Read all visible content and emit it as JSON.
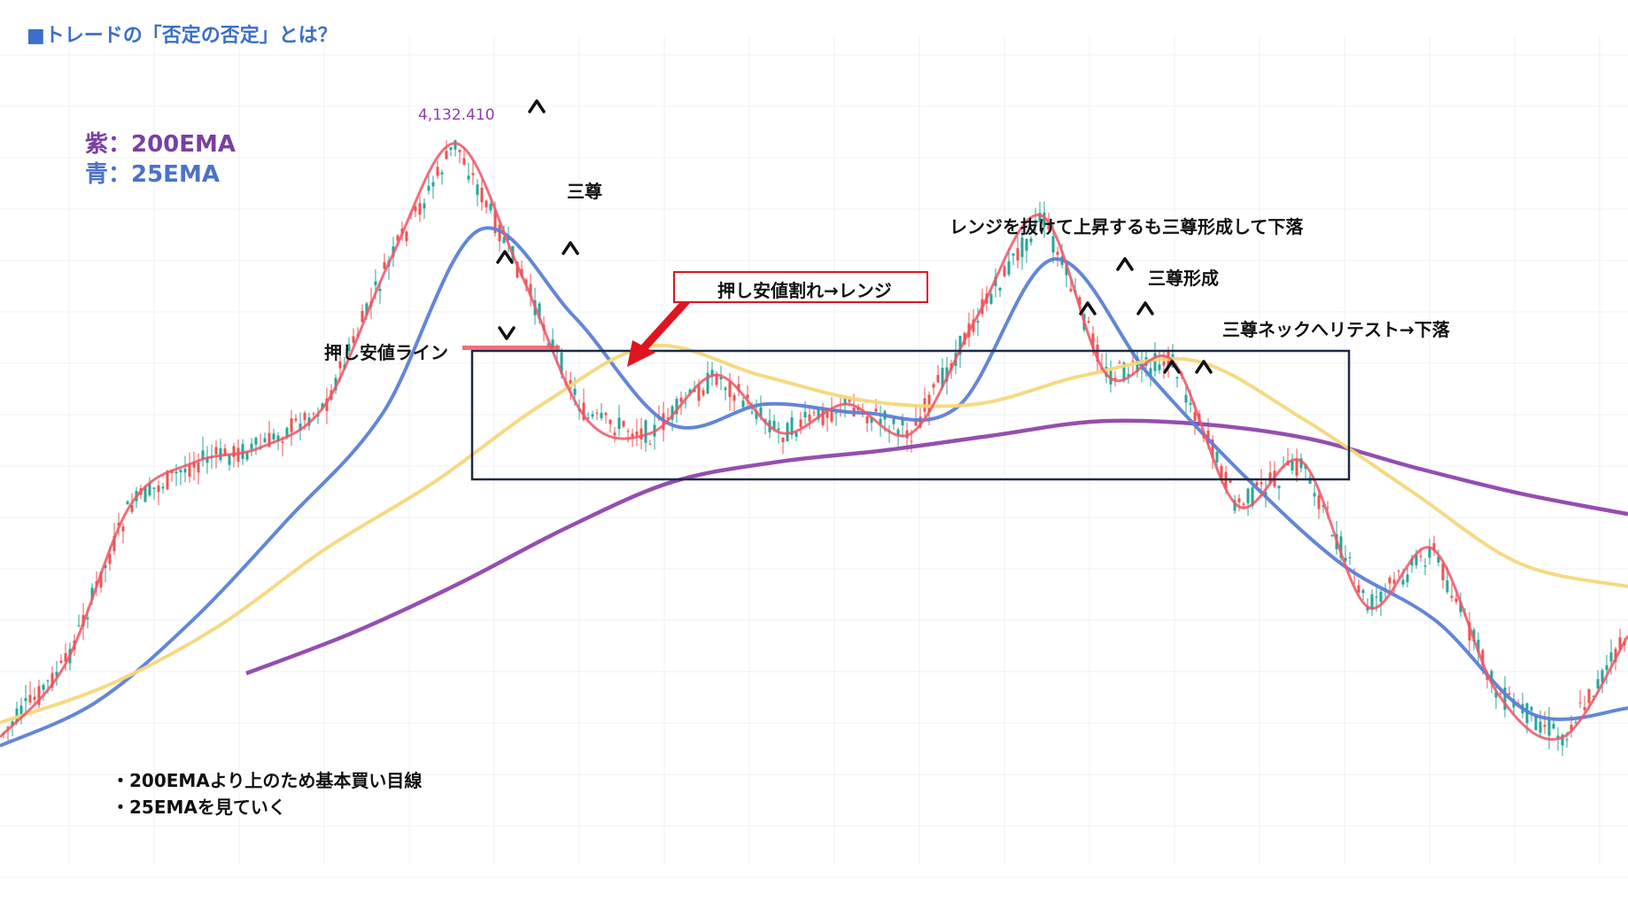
{
  "title": "■トレードの「否定の否定」とは？",
  "price_label": "4,132.410",
  "legend": {
    "ema200": "紫：200EMA",
    "ema25": "青：25EMA"
  },
  "annotations": {
    "sanzon1": "三尊",
    "oshi_line": "押し安値ライン",
    "oshi_break": "押し安値割れ→レンジ",
    "range_break": "レンジを抜けて上昇するも三尊形成して下落",
    "sanzon_keisei": "三尊形成",
    "neck_retest": "三尊ネックへリテスト→下落"
  },
  "notes": [
    "・200EMAより上のため基本買い目線",
    "・25EMAを見ていく"
  ],
  "colors": {
    "title": "#3a6fcc",
    "ema200": "#8e44ad",
    "ema25": "#5b7fd6",
    "ema75": "#f6d77a",
    "price_line": "#ee5566",
    "candle_up": "#26a69a",
    "candle_down": "#ef5350",
    "range_box": "#1c2a44",
    "highlight": "#e0141f"
  },
  "chart_data": {
    "type": "line",
    "title": "",
    "xlabel": "",
    "ylabel": "",
    "y_range_note": "price axis not shown",
    "series": [
      {
        "name": "200EMA",
        "values": [
          5.2,
          6.6,
          8.3,
          10.2,
          11.8,
          12.5,
          12.9,
          13.4,
          13.9,
          13.8,
          13.3,
          12.3,
          11.4,
          10.7
        ]
      },
      {
        "name": "25EMA",
        "values": [
          2.7,
          4.2,
          7.0,
          10.5,
          14.2,
          20.5,
          17.5,
          13.8,
          14.5,
          14.2,
          14.4,
          19.5,
          15.5,
          12.0,
          9.0,
          7.0,
          3.8,
          4.0
        ]
      },
      {
        "values": [
          3.5,
          4.8,
          6.8,
          9.5,
          11.8,
          14.5,
          16.5,
          15.5,
          14.6,
          14.5,
          15.5,
          16.0,
          14.0,
          11.5,
          9.0,
          8.2
        ]
      },
      {
        "name": "price",
        "values": [
          3.0,
          5.5,
          11.0,
          12.5,
          13.0,
          14.5,
          19.5,
          23.5,
          19.0,
          14.0,
          13.5,
          15.5,
          13.5,
          14.5,
          13.5,
          17.5,
          21.0,
          15.5,
          16.0,
          11.0,
          12.5,
          7.5,
          9.5,
          4.5,
          3.0,
          6.5
        ]
      }
    ],
    "range_box": {
      "label": "range",
      "y": [
        13.0,
        17.2
      ]
    },
    "grid": true,
    "legend": "top-left"
  }
}
